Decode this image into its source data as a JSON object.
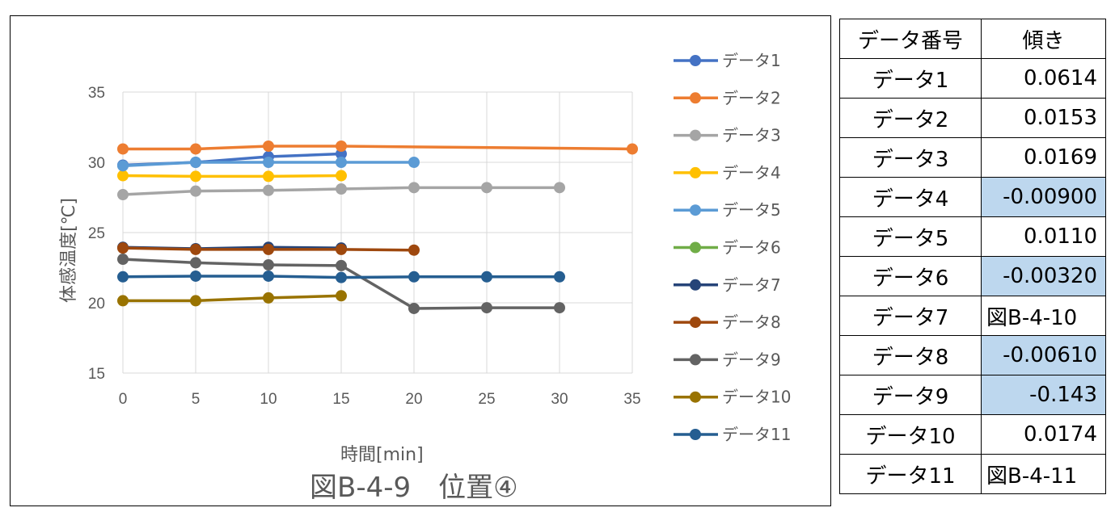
{
  "chart_data": {
    "type": "line",
    "xlabel": "時間[min]",
    "ylabel": "体感温度[℃]",
    "caption": "図B-4-9　位置④",
    "xlim": [
      0,
      35
    ],
    "ylim": [
      15,
      35
    ],
    "xticks": [
      "0",
      "5",
      "10",
      "15",
      "20",
      "25",
      "30",
      "35"
    ],
    "yticks": [
      "15",
      "20",
      "25",
      "30",
      "35"
    ],
    "grid": true,
    "legend_position": "right",
    "series": [
      {
        "name": "データ1",
        "color": "#4472c4",
        "points": [
          [
            0,
            29.8
          ],
          [
            5,
            30.0
          ],
          [
            10,
            30.4
          ],
          [
            15,
            30.6
          ]
        ]
      },
      {
        "name": "データ2",
        "color": "#ed7d31",
        "points": [
          [
            0,
            30.95
          ],
          [
            5,
            30.95
          ],
          [
            10,
            31.15
          ],
          [
            15,
            31.15
          ],
          [
            35,
            30.95
          ]
        ]
      },
      {
        "name": "データ3",
        "color": "#a5a5a5",
        "points": [
          [
            0,
            27.7
          ],
          [
            5,
            27.95
          ],
          [
            10,
            28.0
          ],
          [
            15,
            28.1
          ],
          [
            20,
            28.2
          ],
          [
            25,
            28.2
          ],
          [
            30,
            28.2
          ]
        ]
      },
      {
        "name": "データ4",
        "color": "#ffc000",
        "points": [
          [
            0,
            29.05
          ],
          [
            5,
            29.0
          ],
          [
            10,
            29.0
          ],
          [
            15,
            29.05
          ]
        ]
      },
      {
        "name": "データ5",
        "color": "#5b9bd5",
        "points": [
          [
            0,
            29.75
          ],
          [
            5,
            30.0
          ],
          [
            10,
            30.0
          ],
          [
            15,
            30.0
          ],
          [
            20,
            30.0
          ]
        ]
      },
      {
        "name": "データ6",
        "color": "#70ad47",
        "points": []
      },
      {
        "name": "データ7",
        "color": "#264478",
        "points": [
          [
            0,
            23.95
          ],
          [
            5,
            23.85
          ],
          [
            10,
            23.95
          ],
          [
            15,
            23.9
          ]
        ]
      },
      {
        "name": "データ8",
        "color": "#9e480e",
        "points": [
          [
            0,
            23.9
          ],
          [
            5,
            23.8
          ],
          [
            10,
            23.8
          ],
          [
            15,
            23.8
          ],
          [
            20,
            23.75
          ]
        ]
      },
      {
        "name": "データ9",
        "color": "#636363",
        "points": [
          [
            0,
            23.1
          ],
          [
            5,
            22.85
          ],
          [
            10,
            22.7
          ],
          [
            15,
            22.65
          ],
          [
            20,
            19.6
          ],
          [
            25,
            19.65
          ],
          [
            30,
            19.65
          ]
        ]
      },
      {
        "name": "データ10",
        "color": "#997300",
        "points": [
          [
            0,
            20.15
          ],
          [
            5,
            20.15
          ],
          [
            10,
            20.35
          ],
          [
            15,
            20.5
          ]
        ]
      },
      {
        "name": "データ11",
        "color": "#255e91",
        "points": [
          [
            0,
            21.85
          ],
          [
            5,
            21.9
          ],
          [
            10,
            21.9
          ],
          [
            15,
            21.8
          ],
          [
            20,
            21.85
          ],
          [
            25,
            21.85
          ],
          [
            30,
            21.85
          ]
        ]
      }
    ]
  },
  "table": {
    "header": [
      "データ番号",
      "傾き"
    ],
    "rows": [
      {
        "label": "データ1",
        "value": "0.0614",
        "highlight": false,
        "ref": false
      },
      {
        "label": "データ2",
        "value": "0.0153",
        "highlight": false,
        "ref": false
      },
      {
        "label": "データ3",
        "value": "0.0169",
        "highlight": false,
        "ref": false
      },
      {
        "label": "データ4",
        "value": "-0.00900",
        "highlight": true,
        "ref": false
      },
      {
        "label": "データ5",
        "value": "0.0110",
        "highlight": false,
        "ref": false
      },
      {
        "label": "データ6",
        "value": "-0.00320",
        "highlight": true,
        "ref": false
      },
      {
        "label": "データ7",
        "value": "図B-4-10",
        "highlight": false,
        "ref": true
      },
      {
        "label": "データ8",
        "value": "-0.00610",
        "highlight": true,
        "ref": false
      },
      {
        "label": "データ9",
        "value": "-0.143",
        "highlight": true,
        "ref": false
      },
      {
        "label": "データ10",
        "value": "0.0174",
        "highlight": false,
        "ref": false
      },
      {
        "label": "データ11",
        "value": "図B-4-11",
        "highlight": false,
        "ref": true
      }
    ],
    "highlight_color": "#bdd7ee"
  }
}
